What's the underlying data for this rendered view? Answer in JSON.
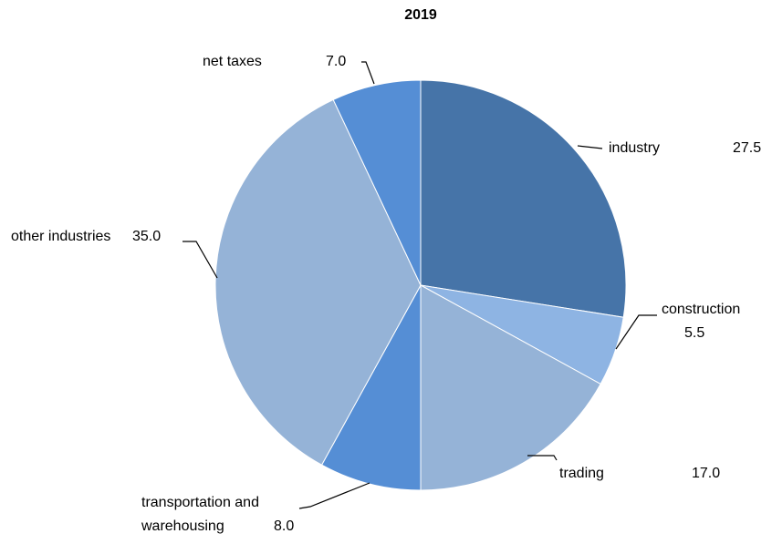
{
  "chart_data": {
    "type": "pie",
    "title": "2019",
    "categories": [
      "industry",
      "construction",
      "trading",
      "transportation and warehousing",
      "other industries",
      "net taxes"
    ],
    "values": [
      27.5,
      5.5,
      17.0,
      8.0,
      35.0,
      7.0
    ],
    "value_labels": [
      "27.5",
      "5.5",
      "17.0",
      "8.0",
      "35.0",
      "7.0"
    ],
    "colors": [
      "#4674a8",
      "#8eb4e3",
      "#95b3d7",
      "#558ed5",
      "#95b3d7",
      "#558ed5"
    ]
  }
}
